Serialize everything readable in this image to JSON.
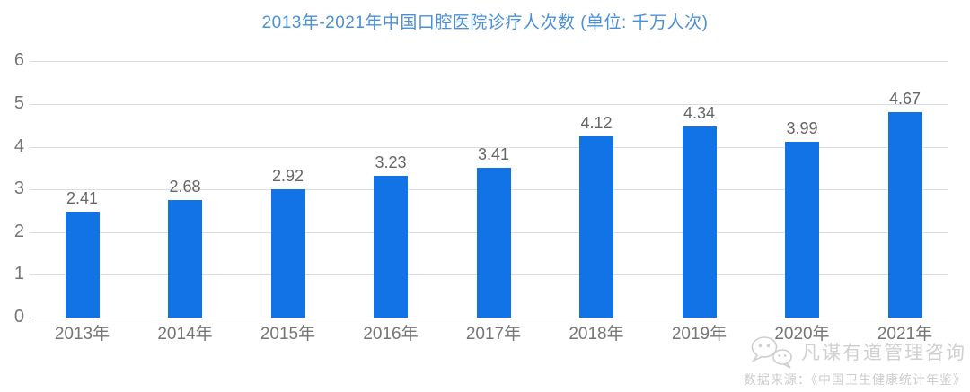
{
  "header": {
    "title": "2013年-2021年中国口腔医院诊疗人次数 (单位: 千万人次)",
    "title_color": "#4a90d8"
  },
  "chart_data": {
    "type": "bar",
    "title": "2013年-2021年中国口腔医院诊疗人次数 (单位: 千万人次)",
    "unit": "千万人次",
    "categories": [
      "2013年",
      "2014年",
      "2015年",
      "2016年",
      "2017年",
      "2018年",
      "2019年",
      "2020年",
      "2021年"
    ],
    "values": [
      2.41,
      2.68,
      2.92,
      3.23,
      3.41,
      4.12,
      4.34,
      3.99,
      4.67
    ],
    "data_labels": [
      "2.41",
      "2.68",
      "2.92",
      "3.23",
      "3.41",
      "4.12",
      "4.34",
      "3.99",
      "4.67"
    ],
    "xlabel": "",
    "ylabel": "",
    "ylim": [
      0,
      6
    ],
    "yticks": [
      0,
      1,
      2,
      3,
      4,
      5,
      6
    ],
    "grid": true,
    "legend_position": "none",
    "bar_color": "#1273e6",
    "gridline_color": "#dcdcdc",
    "axis_line_color": "#9c9c9c",
    "tick_label_color": "#757575",
    "data_label_color": "#666666"
  },
  "footer": {
    "logo_icon": "chat-bubbles-icon",
    "brand": "凡谋有道管理咨询",
    "source": "数据来源：《中国卫生健康统计年鉴》",
    "text_color": "#d0d0d0"
  }
}
